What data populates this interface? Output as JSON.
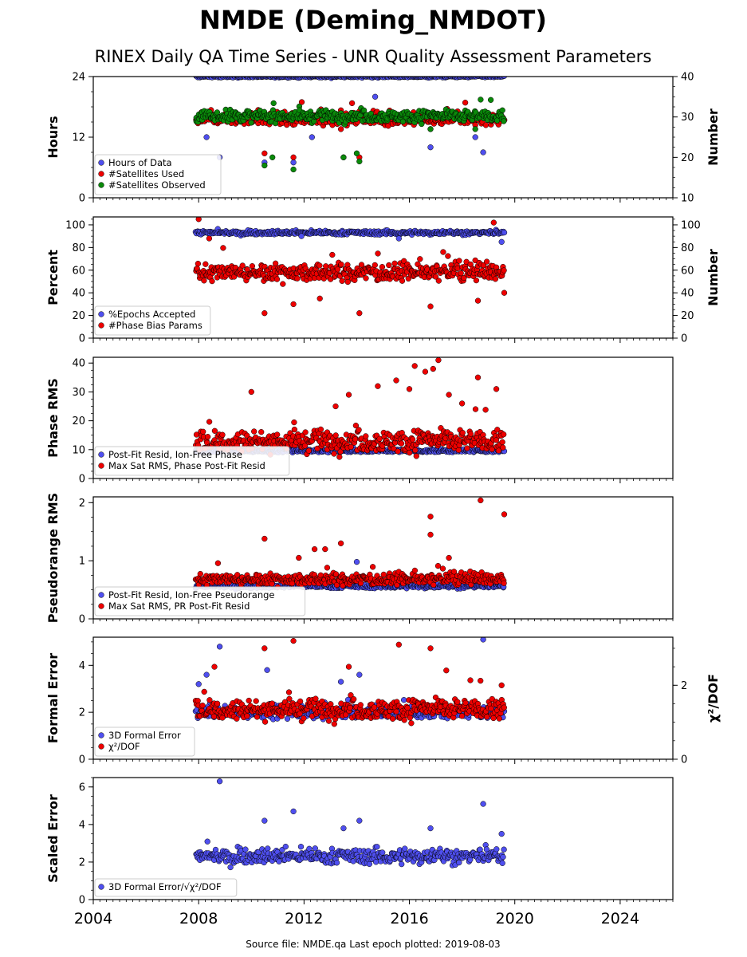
{
  "figure": {
    "title": "NMDE (Deming_NMDOT)",
    "subtitle": "RINEX Daily QA Time Series - UNR Quality Assessment Parameters",
    "footer": "Source file: NMDE.qa Last epoch plotted: 2019-08-03",
    "colors": {
      "blue": "#4f4fef",
      "red": "#ee0000",
      "green": "#0a8a0a",
      "edge": "#000000"
    }
  },
  "chart_data": [
    {
      "type": "scatter",
      "id": "hours",
      "ylabel": "Hours",
      "y2label": "Number",
      "xlim": [
        2004,
        2026
      ],
      "ylim": [
        0,
        24
      ],
      "y2lim": [
        10,
        40
      ],
      "yticks": [
        "0",
        "12",
        "24"
      ],
      "y2ticks": [
        "10",
        "20",
        "30",
        "40"
      ],
      "legend_position": "lower-left",
      "data_range_years": [
        2007.9,
        2019.59
      ],
      "series": [
        {
          "name": "Hours of Data",
          "color": "blue",
          "axis": "left",
          "typical": 24,
          "spread": 0.2,
          "outliers": [
            [
              2008.8,
              8
            ],
            [
              2010.5,
              7
            ],
            [
              2011.6,
              7
            ],
            [
              2012.3,
              12
            ],
            [
              2013.5,
              8
            ],
            [
              2016.8,
              10
            ],
            [
              2018.5,
              12
            ],
            [
              2018.8,
              9
            ],
            [
              2008.3,
              12
            ],
            [
              2014.7,
              20
            ]
          ]
        },
        {
          "name": "#Satellites Used",
          "color": "red",
          "axis": "right",
          "typical": 29.5,
          "spread": 1.4,
          "outliers": [
            [
              2010.5,
              21
            ],
            [
              2011.6,
              20
            ],
            [
              2013.4,
              27
            ],
            [
              2014.1,
              20
            ],
            [
              2010.0,
              31
            ],
            [
              2018.5,
              28
            ],
            [
              2016.8,
              27
            ]
          ]
        },
        {
          "name": "#Satellites Observed",
          "color": "green",
          "axis": "right",
          "typical": 30.2,
          "spread": 1.3,
          "outliers": [
            [
              2010.5,
              18
            ],
            [
              2010.8,
              20
            ],
            [
              2011.6,
              17
            ],
            [
              2013.5,
              20
            ],
            [
              2014.1,
              19
            ],
            [
              2014.0,
              21
            ],
            [
              2016.8,
              27
            ],
            [
              2018.5,
              27
            ]
          ]
        }
      ]
    },
    {
      "type": "scatter",
      "id": "percent",
      "ylabel": "Percent",
      "y2label": "Number",
      "xlim": [
        2004,
        2026
      ],
      "ylim": [
        0,
        107
      ],
      "y2lim": [
        0,
        107
      ],
      "yticks": [
        "0",
        "20",
        "40",
        "60",
        "80",
        "100"
      ],
      "y2ticks": [
        "0",
        "20",
        "40",
        "60",
        "80",
        "100"
      ],
      "legend_position": "lower-left",
      "data_range_years": [
        2007.9,
        2019.59
      ],
      "series": [
        {
          "name": "%Epochs Accepted",
          "color": "blue",
          "axis": "left",
          "typical": 93,
          "spread": 1.5,
          "outliers": [
            [
              2011.9,
              90
            ],
            [
              2015.6,
              88
            ],
            [
              2019.5,
              85
            ]
          ]
        },
        {
          "name": "#Phase Bias Params",
          "color": "red",
          "axis": "right",
          "typical": 58,
          "spread": 7,
          "outliers": [
            [
              2008.0,
              105
            ],
            [
              2019.2,
              102
            ],
            [
              2008.4,
              88
            ],
            [
              2010.5,
              22
            ],
            [
              2011.6,
              30
            ],
            [
              2012.6,
              35
            ],
            [
              2014.1,
              22
            ],
            [
              2016.8,
              28
            ],
            [
              2019.6,
              40
            ],
            [
              2018.6,
              33
            ]
          ]
        }
      ]
    },
    {
      "type": "scatter",
      "id": "phase_rms",
      "ylabel": "Phase RMS",
      "xlim": [
        2004,
        2026
      ],
      "ylim": [
        0,
        42
      ],
      "yticks": [
        "0",
        "10",
        "20",
        "30",
        "40"
      ],
      "legend_position": "lower-left",
      "data_range_years": [
        2007.9,
        2019.59
      ],
      "series": [
        {
          "name": "Post-Fit Resid, Ion-Free Phase",
          "color": "blue",
          "axis": "left",
          "typical": 9.6,
          "spread": 0.5,
          "outliers": []
        },
        {
          "name": "Max Sat RMS, Phase Post-Fit Resid",
          "color": "red",
          "axis": "left",
          "typical": 13,
          "spread": 3.5,
          "outliers": [
            [
              2010.0,
              30
            ],
            [
              2013.7,
              29
            ],
            [
              2014.8,
              32
            ],
            [
              2016.2,
              39
            ],
            [
              2016.6,
              37
            ],
            [
              2016.9,
              38
            ],
            [
              2017.1,
              41
            ],
            [
              2018.6,
              35
            ],
            [
              2019.3,
              31
            ],
            [
              2017.5,
              29
            ],
            [
              2016.0,
              31
            ],
            [
              2015.5,
              34
            ],
            [
              2013.2,
              25
            ],
            [
              2018.0,
              26
            ]
          ]
        }
      ]
    },
    {
      "type": "scatter",
      "id": "pseudorange_rms",
      "ylabel": "Pseudorange RMS",
      "xlim": [
        2004,
        2026
      ],
      "ylim": [
        0,
        2.1
      ],
      "yticks": [
        "0",
        "1",
        "2"
      ],
      "legend_position": "lower-left",
      "data_range_years": [
        2007.9,
        2019.59
      ],
      "series": [
        {
          "name": "Post-Fit Resid, Ion-Free Pseudorange",
          "color": "blue",
          "axis": "left",
          "typical": 0.56,
          "spread": 0.03,
          "outliers": [
            [
              2014.0,
              0.98
            ]
          ]
        },
        {
          "name": "Max Sat RMS, PR Post-Fit Resid",
          "color": "red",
          "axis": "left",
          "typical": 0.68,
          "spread": 0.09,
          "outliers": [
            [
              2018.7,
              2.04
            ],
            [
              2019.6,
              1.8
            ],
            [
              2016.8,
              1.76
            ],
            [
              2016.8,
              1.45
            ],
            [
              2010.5,
              1.38
            ],
            [
              2012.4,
              1.2
            ],
            [
              2012.8,
              1.2
            ],
            [
              2013.4,
              1.3
            ],
            [
              2017.5,
              1.05
            ],
            [
              2011.8,
              1.05
            ]
          ]
        }
      ]
    },
    {
      "type": "scatter",
      "id": "formal_error",
      "ylabel": "Formal Error",
      "y2label": "χ²/DOF",
      "xlim": [
        2004,
        2026
      ],
      "ylim": [
        0,
        5.2
      ],
      "y2lim": [
        0,
        3.3
      ],
      "yticks": [
        "0",
        "2",
        "4"
      ],
      "y2ticks": [
        "0",
        "2"
      ],
      "legend_position": "lower-left",
      "data_range_years": [
        2007.9,
        2019.59
      ],
      "series": [
        {
          "name": "3D Formal Error",
          "color": "blue",
          "axis": "left",
          "typical": 2.0,
          "spread": 0.25,
          "outliers": [
            [
              2008.0,
              3.2
            ],
            [
              2008.3,
              3.6
            ],
            [
              2008.8,
              4.8
            ],
            [
              2010.6,
              3.8
            ],
            [
              2013.4,
              3.3
            ],
            [
              2014.1,
              3.6
            ],
            [
              2018.8,
              5.1
            ]
          ]
        },
        {
          "name": "χ²/DOF",
          "color": "red",
          "axis": "right",
          "typical": 1.35,
          "spread": 0.25,
          "outliers": [
            [
              2010.5,
              3.0
            ],
            [
              2011.6,
              3.2
            ],
            [
              2015.6,
              3.1
            ],
            [
              2016.8,
              3.0
            ],
            [
              2008.6,
              2.5
            ],
            [
              2013.7,
              2.5
            ],
            [
              2017.4,
              2.4
            ],
            [
              2019.5,
              2.0
            ]
          ]
        }
      ]
    },
    {
      "type": "scatter",
      "id": "scaled_error",
      "ylabel": "Scaled Error",
      "xlabel_ticks": [
        "2004",
        "2008",
        "2012",
        "2016",
        "2020",
        "2024"
      ],
      "xlim": [
        2004,
        2026
      ],
      "ylim": [
        0,
        6.5
      ],
      "yticks": [
        "0",
        "2",
        "4",
        "6"
      ],
      "legend_position": "lower-left",
      "data_range_years": [
        2007.9,
        2019.59
      ],
      "series": [
        {
          "name": "3D Formal Error/√χ²/DOF",
          "color": "blue",
          "axis": "left",
          "typical": 2.3,
          "spread": 0.35,
          "outliers": [
            [
              2008.8,
              6.3
            ],
            [
              2018.8,
              5.1
            ],
            [
              2011.6,
              4.7
            ],
            [
              2010.5,
              4.2
            ],
            [
              2014.1,
              4.2
            ],
            [
              2013.5,
              3.8
            ],
            [
              2016.8,
              3.8
            ],
            [
              2019.5,
              3.5
            ]
          ]
        }
      ]
    }
  ]
}
